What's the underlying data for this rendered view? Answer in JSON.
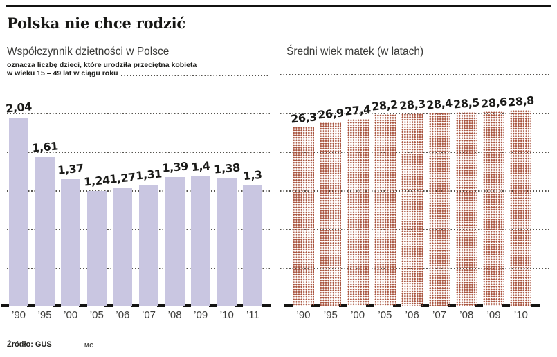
{
  "header": {
    "title": "Polska nie chce rodzić"
  },
  "footer": {
    "source": "Źródło: GUS",
    "credit": "MC"
  },
  "chart_data": [
    {
      "type": "bar",
      "title": "Współczynnik dzietności w Polsce",
      "subtitle_line1": "oznacza liczbę dzieci, które urodziła przeciętna kobieta",
      "subtitle_line2": "w wieku 15 – 49 lat w ciągu roku",
      "categories": [
        "’90",
        "’95",
        "’00",
        "’05",
        "’06",
        "’07",
        "’08",
        "’09",
        "’10",
        "’11"
      ],
      "values": [
        2.04,
        1.61,
        1.37,
        1.24,
        1.27,
        1.31,
        1.39,
        1.4,
        1.38,
        1.3
      ],
      "value_labels": [
        "2,04",
        "1,61",
        "1,37",
        "1,24",
        "1,27",
        "1,31",
        "1,39",
        "1,4",
        "1,38",
        "1,3"
      ],
      "ylim": [
        0,
        2.2
      ],
      "grid": true,
      "legend_position": "none",
      "bar_color": "#c9c6e1"
    },
    {
      "type": "bar",
      "title": "Średni wiek matek (w latach)",
      "categories": [
        "’90",
        "’95",
        "’00",
        "’05",
        "’06",
        "’07",
        "’08",
        "’09",
        "’10"
      ],
      "values": [
        26.3,
        26.9,
        27.4,
        28.2,
        28.3,
        28.4,
        28.5,
        28.6,
        28.8
      ],
      "value_labels": [
        "26,3",
        "26,9",
        "27,4",
        "28,2",
        "28,3",
        "28,4",
        "28,5",
        "28,6",
        "28,8"
      ],
      "axis_note": "truncated axis – bars not zero-based",
      "grid": true,
      "legend_position": "none",
      "bar_dot_color": "#a8523c"
    }
  ]
}
